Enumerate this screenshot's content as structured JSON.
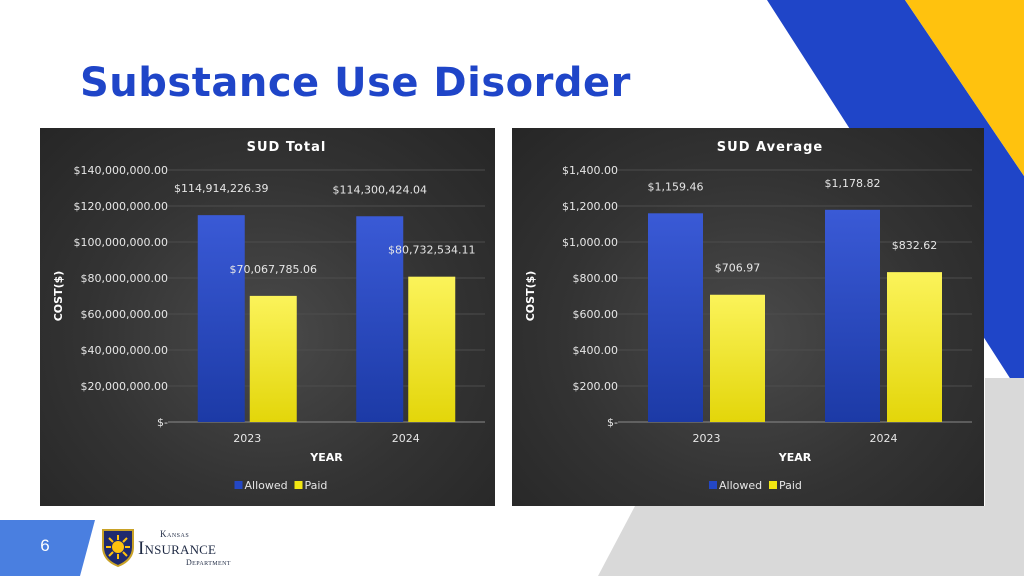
{
  "slide": {
    "title": "Substance Use Disorder",
    "page_number": "6",
    "logo": {
      "line1": "Kansas",
      "line2": "Insurance",
      "line3": "Department"
    }
  },
  "colors": {
    "title": "#1f45c8",
    "deco_blue": "#1f45c8",
    "deco_yellow": "#ffc20e",
    "deco_gray": "#d9d9d9",
    "allowed": "#2447c4",
    "paid": "#f2e712"
  },
  "chart_data": [
    {
      "type": "bar",
      "title": "SUD Total",
      "xlabel": "YEAR",
      "ylabel": "COST($)",
      "categories": [
        "2023",
        "2024"
      ],
      "ylim": [
        0,
        140000000
      ],
      "ytick_values": [
        0,
        20000000,
        40000000,
        60000000,
        80000000,
        100000000,
        120000000,
        140000000
      ],
      "ytick_labels": [
        "$-",
        "$20,000,000.00",
        "$40,000,000.00",
        "$60,000,000.00",
        "$80,000,000.00",
        "$100,000,000.00",
        "$120,000,000.00",
        "$140,000,000.00"
      ],
      "grid": true,
      "legend_position": "bottom",
      "series": [
        {
          "name": "Allowed",
          "values": [
            114914226.39,
            114300424.04
          ],
          "labels": [
            "$114,914,226.39",
            "$114,300,424.04"
          ]
        },
        {
          "name": "Paid",
          "values": [
            70067785.06,
            80732534.11
          ],
          "labels": [
            "$70,067,785.06",
            "$80,732,534.11"
          ]
        }
      ]
    },
    {
      "type": "bar",
      "title": "SUD Average",
      "xlabel": "YEAR",
      "ylabel": "COST($)",
      "categories": [
        "2023",
        "2024"
      ],
      "ylim": [
        0,
        1400
      ],
      "ytick_values": [
        0,
        200,
        400,
        600,
        800,
        1000,
        1200,
        1400
      ],
      "ytick_labels": [
        "$-",
        "$200.00",
        "$400.00",
        "$600.00",
        "$800.00",
        "$1,000.00",
        "$1,200.00",
        "$1,400.00"
      ],
      "grid": true,
      "legend_position": "bottom",
      "series": [
        {
          "name": "Allowed",
          "values": [
            1159.46,
            1178.82
          ],
          "labels": [
            "$1,159.46",
            "$1,178.82"
          ]
        },
        {
          "name": "Paid",
          "values": [
            706.97,
            832.62
          ],
          "labels": [
            "$706.97",
            "$832.62"
          ]
        }
      ]
    }
  ]
}
